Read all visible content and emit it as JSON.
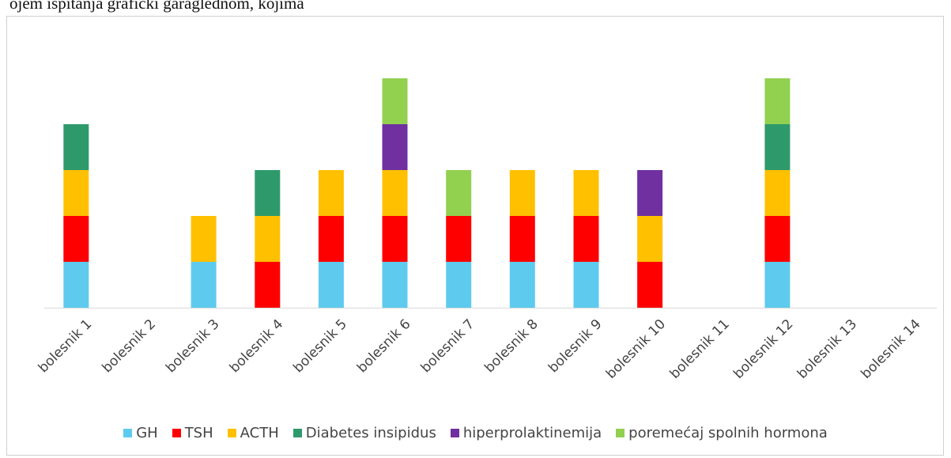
{
  "page": {
    "top_text": "ojem ispitanja grafički garaglednom, kojima"
  },
  "chart_data": {
    "type": "bar",
    "stacked": true,
    "categories": [
      "bolesnik 1",
      "bolesnik 2",
      "bolesnik 3",
      "bolesnik 4",
      "bolesnik 5",
      "bolesnik 6",
      "bolesnik 7",
      "bolesnik 8",
      "bolesnik 9",
      "bolesnik 10",
      "bolesnik 11",
      "bolesnik 12",
      "bolesnik 13",
      "bolesnik 14"
    ],
    "series": [
      {
        "name": "GH",
        "color": "#5ECBEE",
        "values": [
          1,
          0,
          1,
          0,
          1,
          1,
          1,
          1,
          1,
          0,
          0,
          1,
          0,
          0
        ]
      },
      {
        "name": "TSH",
        "color": "#FF0000",
        "values": [
          1,
          0,
          0,
          1,
          1,
          1,
          1,
          1,
          1,
          1,
          0,
          1,
          0,
          0
        ]
      },
      {
        "name": "ACTH",
        "color": "#FFC000",
        "values": [
          1,
          0,
          1,
          1,
          1,
          1,
          0,
          1,
          1,
          1,
          0,
          1,
          0,
          0
        ]
      },
      {
        "name": "Diabetes insipidus",
        "color": "#2E9A6C",
        "values": [
          1,
          0,
          0,
          1,
          0,
          0,
          0,
          0,
          0,
          0,
          0,
          1,
          0,
          0
        ]
      },
      {
        "name": "hiperprolaktinemija",
        "color": "#7030A0",
        "values": [
          0,
          0,
          0,
          0,
          0,
          1,
          0,
          0,
          0,
          1,
          0,
          0,
          0,
          0
        ]
      },
      {
        "name": "poremećaj spolnih hormona",
        "color": "#92D050",
        "values": [
          0,
          0,
          0,
          0,
          0,
          1,
          1,
          0,
          0,
          0,
          0,
          1,
          0,
          0
        ]
      }
    ],
    "ylim": [
      0,
      6
    ],
    "grid": false,
    "legend_position": "bottom",
    "axis_color": "#d9d9d9",
    "tick_label_color": "#444444"
  }
}
